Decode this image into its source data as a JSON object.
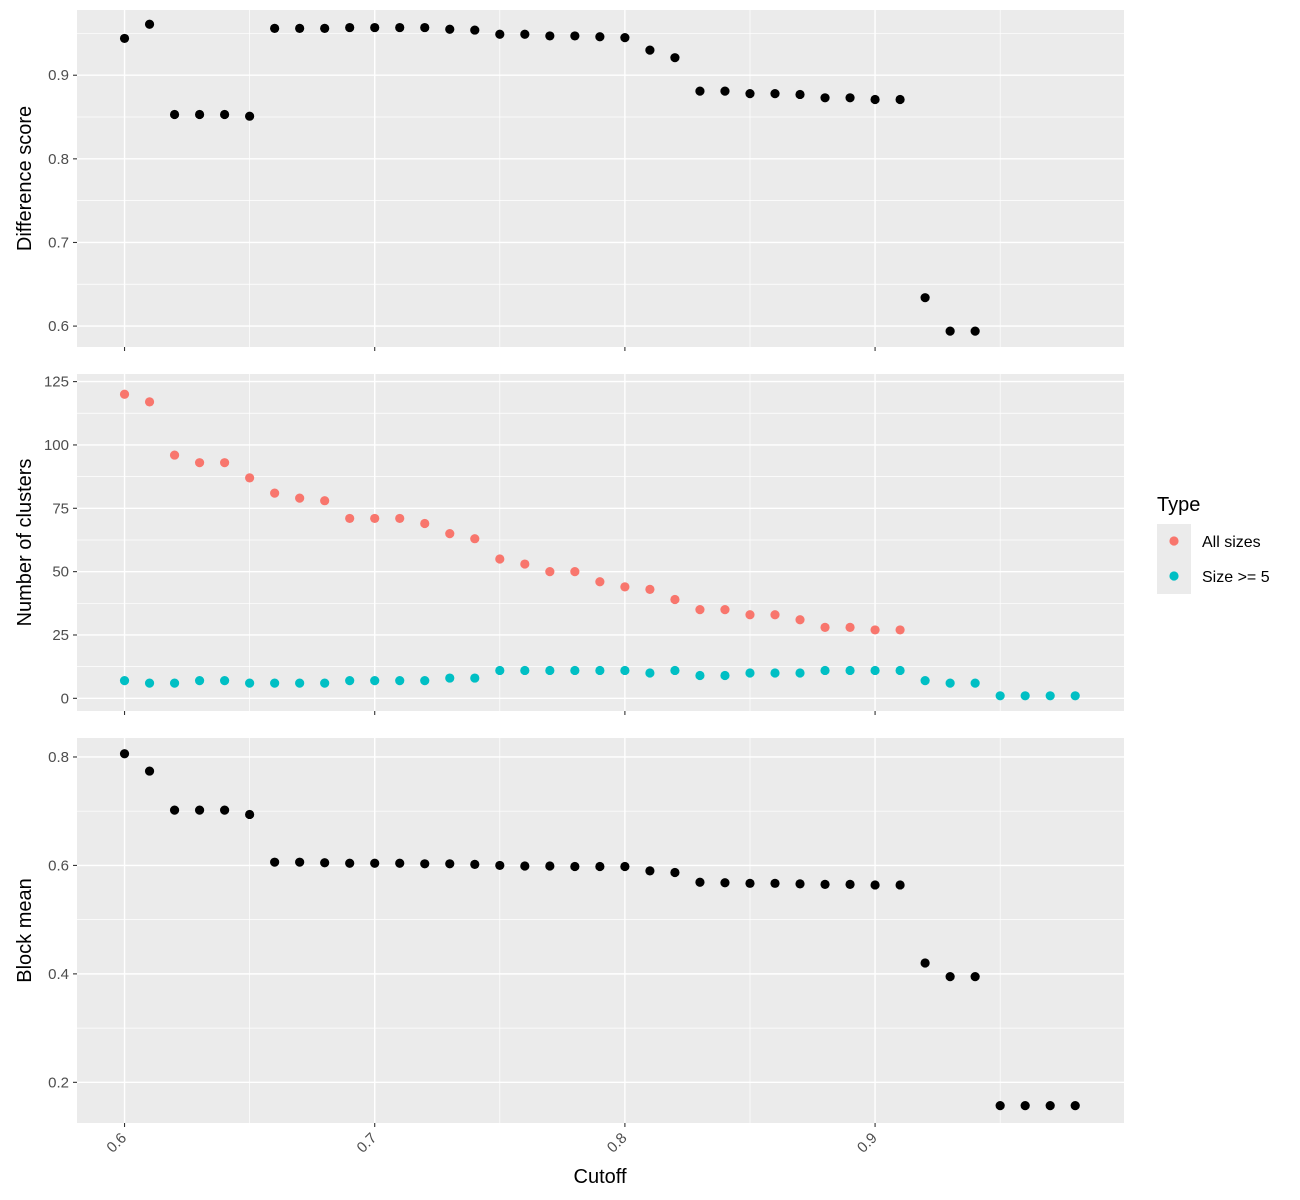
{
  "chart_data": {
    "type": "scatter",
    "xlabel": "Cutoff",
    "xlim": [
      0.581,
      0.9995
    ],
    "xticks": [
      0.6,
      0.7,
      0.8,
      0.9
    ],
    "x_tick_labels": [
      "0.6",
      "0.7",
      "0.8",
      "0.9"
    ],
    "grid": true,
    "legend": {
      "title": "Type",
      "position": "right",
      "entries": [
        {
          "label": "All sizes",
          "color": "#F8766D"
        },
        {
          "label": "Size >= 5",
          "color": "#00BFC4"
        }
      ]
    },
    "panels": [
      {
        "ylabel": "Difference score",
        "ylim": [
          0.575,
          0.978
        ],
        "yticks": [
          0.6,
          0.7,
          0.8,
          0.9
        ],
        "y_tick_labels": [
          "0.6",
          "0.7",
          "0.8",
          "0.9"
        ],
        "series": [
          {
            "color": "#000000",
            "x": [
              0.6,
              0.61,
              0.62,
              0.63,
              0.64,
              0.65,
              0.66,
              0.67,
              0.68,
              0.69,
              0.7,
              0.71,
              0.72,
              0.73,
              0.74,
              0.75,
              0.76,
              0.77,
              0.78,
              0.79,
              0.8,
              0.81,
              0.82,
              0.83,
              0.84,
              0.85,
              0.86,
              0.87,
              0.88,
              0.89,
              0.9,
              0.91,
              0.92,
              0.93,
              0.94
            ],
            "y": [
              0.944,
              0.961,
              0.853,
              0.853,
              0.853,
              0.851,
              0.956,
              0.956,
              0.956,
              0.957,
              0.957,
              0.957,
              0.957,
              0.955,
              0.954,
              0.949,
              0.949,
              0.947,
              0.947,
              0.946,
              0.945,
              0.93,
              0.921,
              0.881,
              0.881,
              0.878,
              0.878,
              0.877,
              0.873,
              0.873,
              0.871,
              0.871,
              0.634,
              0.594,
              0.594
            ]
          }
        ]
      },
      {
        "ylabel": "Number of clusters",
        "ylim": [
          -5,
          128
        ],
        "yticks": [
          0,
          25,
          50,
          75,
          100,
          125
        ],
        "y_tick_labels": [
          "0",
          "25",
          "50",
          "75",
          "100",
          "125"
        ],
        "series": [
          {
            "name": "All sizes",
            "color": "#F8766D",
            "x": [
              0.6,
              0.61,
              0.62,
              0.63,
              0.64,
              0.65,
              0.66,
              0.67,
              0.68,
              0.69,
              0.7,
              0.71,
              0.72,
              0.73,
              0.74,
              0.75,
              0.76,
              0.77,
              0.78,
              0.79,
              0.8,
              0.81,
              0.82,
              0.83,
              0.84,
              0.85,
              0.86,
              0.87,
              0.88,
              0.89,
              0.9,
              0.91
            ],
            "y": [
              120,
              117,
              96,
              93,
              93,
              87,
              81,
              79,
              78,
              71,
              71,
              71,
              69,
              65,
              63,
              55,
              53,
              50,
              50,
              46,
              44,
              43,
              39,
              35,
              35,
              33,
              33,
              31,
              28,
              28,
              27,
              27
            ]
          },
          {
            "name": "Size >= 5",
            "color": "#00BFC4",
            "x": [
              0.6,
              0.61,
              0.62,
              0.63,
              0.64,
              0.65,
              0.66,
              0.67,
              0.68,
              0.69,
              0.7,
              0.71,
              0.72,
              0.73,
              0.74,
              0.75,
              0.76,
              0.77,
              0.78,
              0.79,
              0.8,
              0.81,
              0.82,
              0.83,
              0.84,
              0.85,
              0.86,
              0.87,
              0.88,
              0.89,
              0.9,
              0.91,
              0.92,
              0.93,
              0.94,
              0.95,
              0.96,
              0.97,
              0.98
            ],
            "y": [
              7,
              6,
              6,
              7,
              7,
              6,
              6,
              6,
              6,
              7,
              7,
              7,
              7,
              8,
              8,
              11,
              11,
              11,
              11,
              11,
              11,
              10,
              11,
              9,
              9,
              10,
              10,
              10,
              11,
              11,
              11,
              11,
              7,
              6,
              6,
              1,
              1,
              1,
              1
            ]
          }
        ]
      },
      {
        "ylabel": "Block mean",
        "ylim": [
          0.125,
          0.835
        ],
        "yticks": [
          0.2,
          0.4,
          0.6,
          0.8
        ],
        "y_tick_labels": [
          "0.2",
          "0.4",
          "0.6",
          "0.8"
        ],
        "series": [
          {
            "color": "#000000",
            "x": [
              0.6,
              0.61,
              0.62,
              0.63,
              0.64,
              0.65,
              0.66,
              0.67,
              0.68,
              0.69,
              0.7,
              0.71,
              0.72,
              0.73,
              0.74,
              0.75,
              0.76,
              0.77,
              0.78,
              0.79,
              0.8,
              0.81,
              0.82,
              0.83,
              0.84,
              0.85,
              0.86,
              0.87,
              0.88,
              0.89,
              0.9,
              0.91,
              0.92,
              0.93,
              0.94,
              0.95,
              0.96,
              0.97,
              0.98
            ],
            "y": [
              0.806,
              0.774,
              0.702,
              0.702,
              0.702,
              0.694,
              0.606,
              0.606,
              0.605,
              0.604,
              0.604,
              0.604,
              0.603,
              0.603,
              0.602,
              0.6,
              0.599,
              0.599,
              0.598,
              0.598,
              0.598,
              0.59,
              0.587,
              0.569,
              0.568,
              0.567,
              0.567,
              0.566,
              0.565,
              0.565,
              0.564,
              0.564,
              0.42,
              0.395,
              0.395,
              0.157,
              0.157,
              0.157,
              0.157
            ]
          }
        ]
      }
    ]
  }
}
